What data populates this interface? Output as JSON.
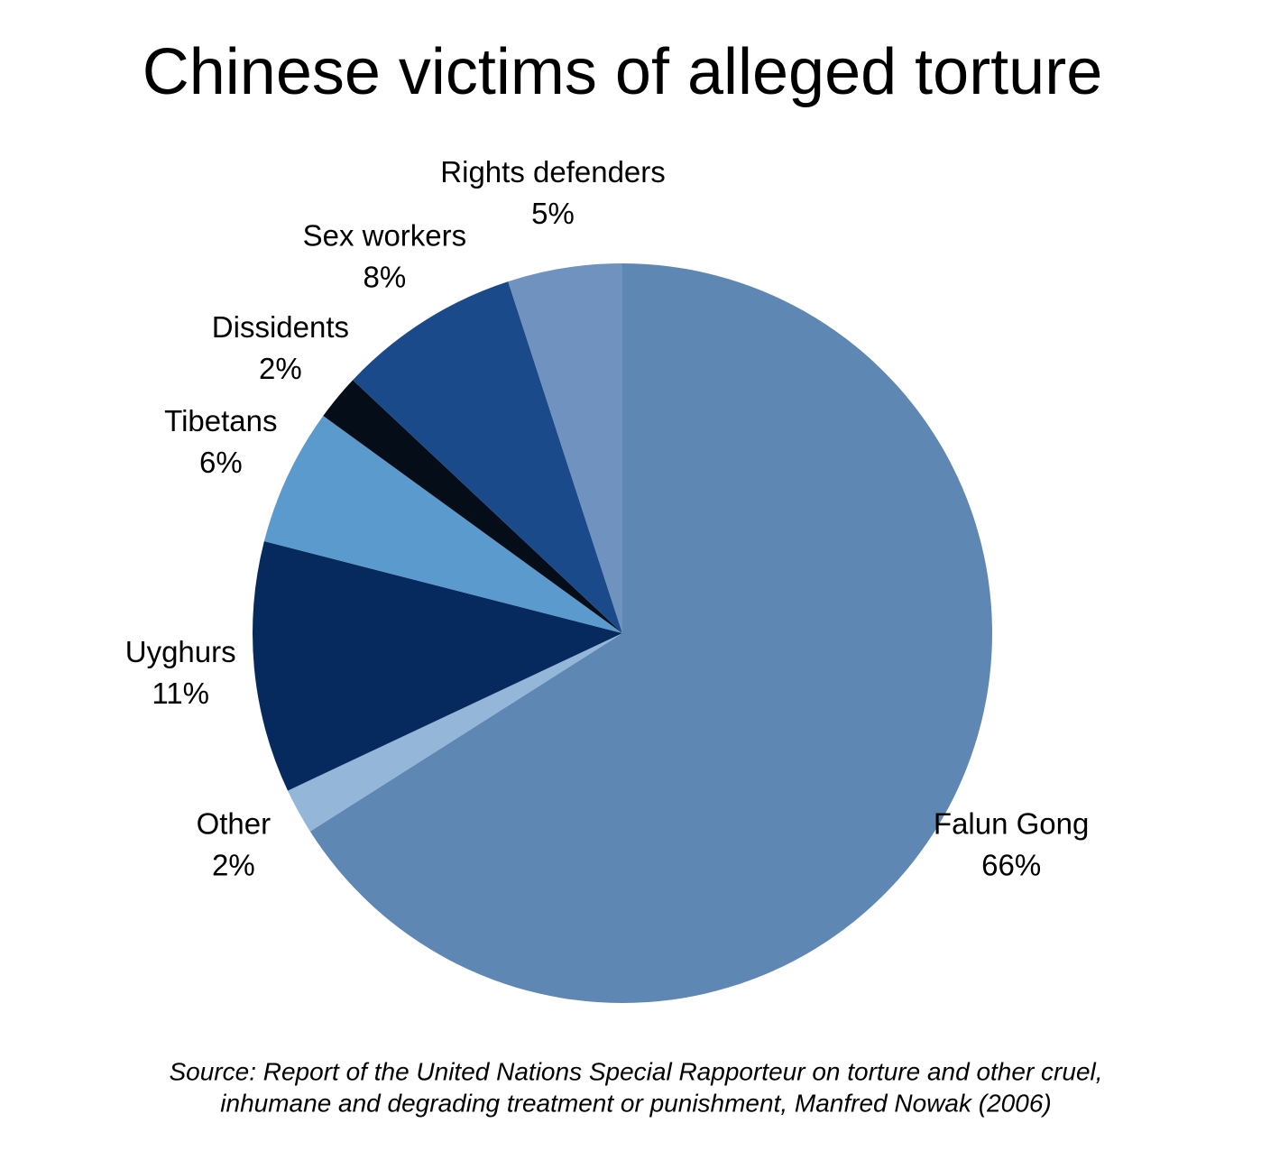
{
  "chart_data": {
    "type": "pie",
    "title": "Chinese victims of alleged torture",
    "categories": [
      "Falun Gong",
      "Other",
      "Uyghurs",
      "Tibetans",
      "Dissidents",
      "Sex workers",
      "Rights defenders"
    ],
    "values": [
      66,
      2,
      11,
      6,
      2,
      8,
      5
    ],
    "value_labels": [
      "66%",
      "2%",
      "11%",
      "6%",
      "2%",
      "8%",
      "5%"
    ],
    "colors": [
      "#5f87b4",
      "#94b6d8",
      "#062a5e",
      "#5b9acd",
      "#050d18",
      "#1b4a8a",
      "#6f92be"
    ],
    "source": [
      "Source: Report of the United Nations Special Rapporteur on torture and other cruel,",
      "inhumane and degrading treatment or punishment, Manfred Nowak (2006)"
    ]
  }
}
